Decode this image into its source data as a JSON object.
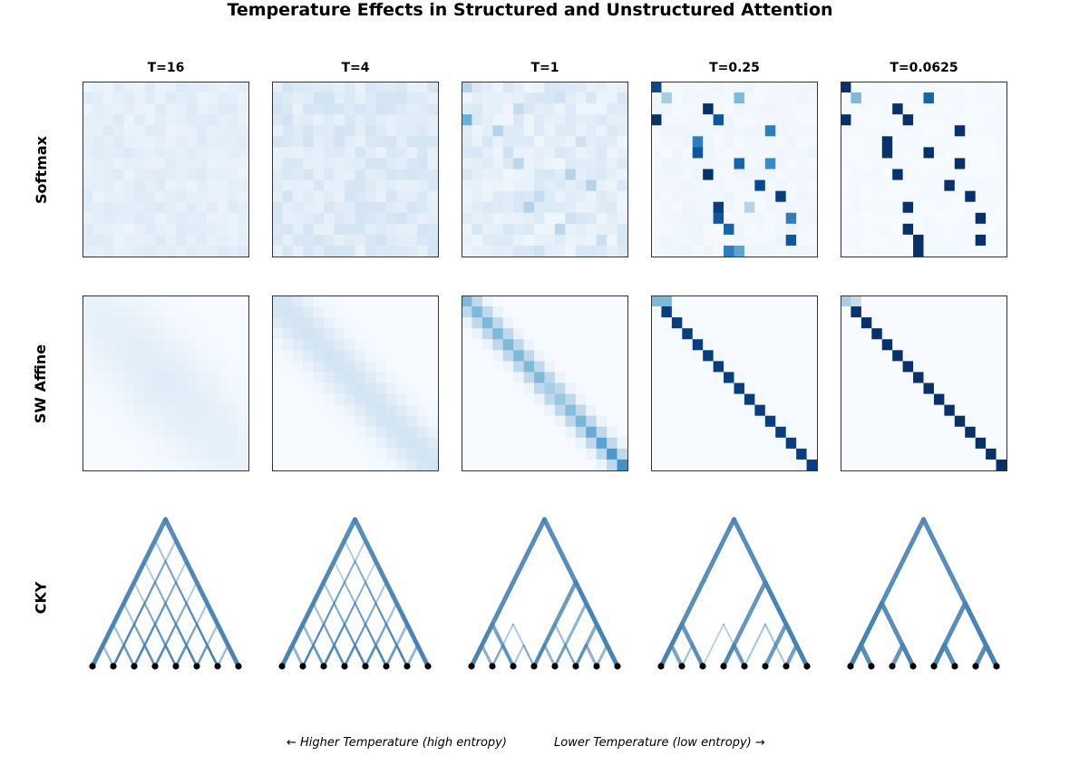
{
  "title": "Temperature Effects in Structured and Unstructured Attention",
  "columns": [
    "T=16",
    "T=4",
    "T=1",
    "T=0.25",
    "T=0.0625"
  ],
  "rows": [
    "Softmax",
    "SW Affine",
    "CKY"
  ],
  "captions": {
    "left": "← Higher Temperature (high entropy)",
    "right": "Lower Temperature (low entropy) →"
  },
  "colors": {
    "colormap": "Blues",
    "low": "#f7fbff",
    "high": "#08306b",
    "tree_edge": "#4682b4",
    "leaf": "#000000"
  },
  "chart_data": [
    {
      "type": "heatmap",
      "row": "Softmax",
      "matrix_size": [
        16,
        16
      ],
      "colormap": "Blues",
      "panels": [
        {
          "temperature": "T=16",
          "peaks": [
            [
              0,
              3,
              0.12
            ],
            [
              1,
              9,
              0.1
            ],
            [
              3,
              0,
              0.1
            ],
            [
              5,
              12,
              0.09
            ],
            [
              7,
              5,
              0.09
            ],
            [
              9,
              14,
              0.09
            ],
            [
              11,
              8,
              0.1
            ],
            [
              13,
              2,
              0.09
            ],
            [
              15,
              11,
              0.09
            ]
          ]
        },
        {
          "temperature": "T=4",
          "peaks": [
            [
              0,
              2,
              0.14
            ],
            [
              1,
              9,
              0.13
            ],
            [
              2,
              14,
              0.12
            ],
            [
              3,
              0,
              0.15
            ],
            [
              4,
              12,
              0.12
            ],
            [
              6,
              5,
              0.13
            ],
            [
              8,
              10,
              0.12
            ],
            [
              10,
              3,
              0.12
            ],
            [
              12,
              13,
              0.13
            ],
            [
              14,
              7,
              0.12
            ],
            [
              15,
              4,
              0.12
            ]
          ]
        },
        {
          "temperature": "T=1",
          "peaks": [
            [
              0,
              0,
              0.3
            ],
            [
              1,
              9,
              0.2
            ],
            [
              2,
              5,
              0.25
            ],
            [
              3,
              0,
              0.5
            ],
            [
              4,
              3,
              0.3
            ],
            [
              5,
              11,
              0.2
            ],
            [
              6,
              4,
              0.2
            ],
            [
              7,
              5,
              0.28
            ],
            [
              8,
              10,
              0.3
            ],
            [
              9,
              12,
              0.3
            ],
            [
              10,
              7,
              0.25
            ],
            [
              11,
              6,
              0.3
            ],
            [
              12,
              10,
              0.2
            ],
            [
              13,
              9,
              0.28
            ],
            [
              14,
              13,
              0.22
            ],
            [
              15,
              7,
              0.2
            ]
          ]
        },
        {
          "temperature": "T=0.25",
          "peaks": [
            [
              0,
              0,
              0.9
            ],
            [
              1,
              1,
              0.35
            ],
            [
              1,
              8,
              0.45
            ],
            [
              2,
              5,
              1.0
            ],
            [
              3,
              0,
              1.0
            ],
            [
              3,
              6,
              0.85
            ],
            [
              4,
              11,
              0.7
            ],
            [
              5,
              4,
              0.7
            ],
            [
              6,
              4,
              0.85
            ],
            [
              7,
              8,
              0.8
            ],
            [
              7,
              11,
              0.65
            ],
            [
              8,
              5,
              1.0
            ],
            [
              9,
              10,
              0.9
            ],
            [
              10,
              12,
              0.95
            ],
            [
              11,
              6,
              0.95
            ],
            [
              11,
              9,
              0.3
            ],
            [
              12,
              6,
              0.85
            ],
            [
              12,
              13,
              0.7
            ],
            [
              13,
              7,
              0.8
            ],
            [
              14,
              13,
              0.85
            ],
            [
              15,
              7,
              0.7
            ],
            [
              15,
              8,
              0.55
            ]
          ]
        },
        {
          "temperature": "T=0.0625",
          "peaks": [
            [
              0,
              0,
              1.0
            ],
            [
              1,
              1,
              0.45
            ],
            [
              1,
              8,
              0.8
            ],
            [
              2,
              5,
              1.0
            ],
            [
              3,
              0,
              1.0
            ],
            [
              3,
              6,
              1.0
            ],
            [
              4,
              11,
              1.0
            ],
            [
              5,
              4,
              1.0
            ],
            [
              6,
              4,
              1.0
            ],
            [
              6,
              8,
              1.0
            ],
            [
              7,
              11,
              1.0
            ],
            [
              8,
              5,
              1.0
            ],
            [
              9,
              10,
              1.0
            ],
            [
              10,
              12,
              1.0
            ],
            [
              11,
              6,
              1.0
            ],
            [
              12,
              13,
              1.0
            ],
            [
              13,
              6,
              1.0
            ],
            [
              14,
              7,
              1.0
            ],
            [
              14,
              13,
              1.0
            ],
            [
              15,
              7,
              1.0
            ]
          ]
        }
      ]
    },
    {
      "type": "heatmap",
      "row": "SW Affine",
      "matrix_size": [
        16,
        16
      ],
      "colormap": "Blues",
      "panels": [
        {
          "temperature": "T=16",
          "diag_peak": 0.12,
          "band_width": 4.0
        },
        {
          "temperature": "T=4",
          "diag_peak": 0.18,
          "band_width": 2.2
        },
        {
          "temperature": "T=1",
          "diag_peak": 0.45,
          "band_width": 1.0
        },
        {
          "temperature": "T=0.25",
          "diag_peak": 0.95,
          "band_width": 0.35
        },
        {
          "temperature": "T=0.0625",
          "diag_peak": 1.0,
          "band_width": 0.12
        }
      ]
    },
    {
      "type": "tree",
      "row": "CKY",
      "leaves": 8,
      "panels": [
        {
          "temperature": "T=16",
          "spans": [
            [
              0,
              8,
              1.0
            ],
            [
              0,
              7,
              0.3
            ],
            [
              1,
              8,
              0.3
            ],
            [
              0,
              6,
              0.25
            ],
            [
              1,
              7,
              0.3
            ],
            [
              2,
              8,
              0.25
            ],
            [
              0,
              5,
              0.25
            ],
            [
              1,
              6,
              0.3
            ],
            [
              2,
              7,
              0.3
            ],
            [
              3,
              8,
              0.25
            ],
            [
              0,
              4,
              0.3
            ],
            [
              1,
              5,
              0.3
            ],
            [
              2,
              6,
              0.35
            ],
            [
              3,
              7,
              0.3
            ],
            [
              4,
              8,
              0.3
            ],
            [
              0,
              3,
              0.35
            ],
            [
              1,
              4,
              0.35
            ],
            [
              2,
              5,
              0.35
            ],
            [
              3,
              6,
              0.35
            ],
            [
              4,
              7,
              0.35
            ],
            [
              5,
              8,
              0.35
            ],
            [
              0,
              2,
              0.4
            ],
            [
              1,
              3,
              0.45
            ],
            [
              2,
              4,
              0.45
            ],
            [
              3,
              5,
              0.45
            ],
            [
              4,
              6,
              0.45
            ],
            [
              5,
              7,
              0.45
            ],
            [
              6,
              8,
              0.4
            ]
          ]
        },
        {
          "temperature": "T=4",
          "spans": [
            [
              0,
              8,
              1.0
            ],
            [
              0,
              7,
              0.25
            ],
            [
              1,
              8,
              0.25
            ],
            [
              0,
              6,
              0.2
            ],
            [
              1,
              7,
              0.25
            ],
            [
              2,
              8,
              0.2
            ],
            [
              0,
              5,
              0.3
            ],
            [
              1,
              6,
              0.2
            ],
            [
              2,
              7,
              0.25
            ],
            [
              3,
              8,
              0.3
            ],
            [
              0,
              4,
              0.35
            ],
            [
              1,
              5,
              0.25
            ],
            [
              2,
              6,
              0.3
            ],
            [
              3,
              7,
              0.25
            ],
            [
              4,
              8,
              0.35
            ],
            [
              0,
              3,
              0.45
            ],
            [
              1,
              4,
              0.3
            ],
            [
              2,
              5,
              0.35
            ],
            [
              3,
              6,
              0.3
            ],
            [
              4,
              7,
              0.35
            ],
            [
              5,
              8,
              0.45
            ],
            [
              0,
              2,
              0.5
            ],
            [
              1,
              3,
              0.45
            ],
            [
              2,
              4,
              0.5
            ],
            [
              3,
              5,
              0.45
            ],
            [
              4,
              6,
              0.5
            ],
            [
              5,
              7,
              0.45
            ],
            [
              6,
              8,
              0.5
            ]
          ]
        },
        {
          "temperature": "T=1",
          "spans": [
            [
              0,
              8,
              1.0
            ],
            [
              3,
              8,
              0.85
            ],
            [
              0,
              3,
              0.75
            ],
            [
              3,
              6,
              0.35
            ],
            [
              4,
              8,
              0.55
            ],
            [
              5,
              8,
              0.65
            ],
            [
              1,
              3,
              0.4
            ],
            [
              0,
              2,
              0.55
            ],
            [
              3,
              5,
              0.5
            ],
            [
              5,
              7,
              0.55
            ],
            [
              6,
              8,
              0.5
            ],
            [
              4,
              6,
              0.35
            ],
            [
              2,
              4,
              0.3
            ],
            [
              1,
              4,
              0.25
            ]
          ]
        },
        {
          "temperature": "T=0.25",
          "spans": [
            [
              0,
              8,
              1.0
            ],
            [
              3,
              8,
              0.9
            ],
            [
              0,
              3,
              0.9
            ],
            [
              5,
              8,
              0.85
            ],
            [
              3,
              5,
              0.8
            ],
            [
              0,
              2,
              0.75
            ],
            [
              6,
              8,
              0.8
            ],
            [
              4,
              7,
              0.3
            ],
            [
              1,
              3,
              0.35
            ],
            [
              2,
              5,
              0.2
            ]
          ]
        },
        {
          "temperature": "T=0.0625",
          "spans": [
            [
              0,
              8,
              1.0
            ],
            [
              4,
              8,
              1.0
            ],
            [
              0,
              4,
              1.0
            ],
            [
              0,
              2,
              1.0
            ],
            [
              6,
              8,
              1.0
            ],
            [
              4,
              6,
              1.0
            ],
            [
              2,
              4,
              0.9
            ]
          ]
        }
      ]
    }
  ]
}
